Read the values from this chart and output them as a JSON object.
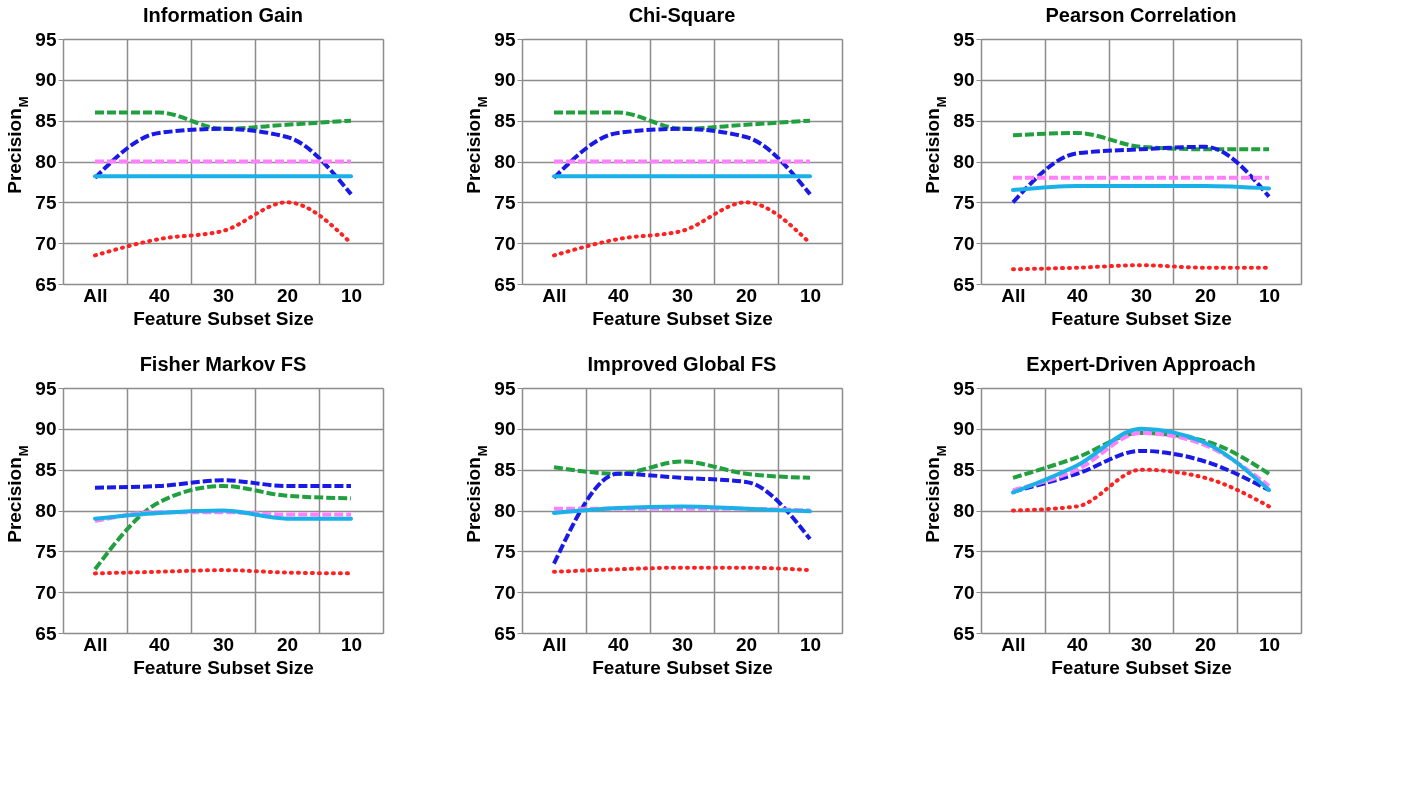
{
  "chart_data": [
    {
      "type": "line",
      "title": "Information Gain",
      "xlabel": "Feature Subset Size",
      "ylabel": "Precision$_{M}$",
      "categories": [
        "All",
        "40",
        "30",
        "20",
        "10"
      ],
      "ylim": [
        65,
        95
      ],
      "yticks": [
        65,
        70,
        75,
        80,
        85,
        90,
        95
      ],
      "grid": true,
      "series": [
        {
          "color": "#22a040",
          "line_style": "dashed",
          "values": [
            86,
            86,
            84,
            84.5,
            85
          ]
        },
        {
          "color": "#1a1ae6",
          "line_style": "dashed",
          "values": [
            78,
            83.5,
            84,
            83,
            76
          ]
        },
        {
          "color": "#ff80ff",
          "line_style": "dashed",
          "values": [
            80,
            80,
            80,
            80,
            80
          ]
        },
        {
          "color": "#1ab0e8",
          "line_style": "solid",
          "values": [
            78.2,
            78.2,
            78.2,
            78.2,
            78.2
          ]
        },
        {
          "color": "#ff2020",
          "line_style": "dotted",
          "values": [
            68.5,
            70.5,
            71.5,
            75,
            70
          ]
        }
      ]
    },
    {
      "type": "line",
      "title": "Chi-Square",
      "xlabel": "Feature Subset Size",
      "ylabel": "Precision$_{M}$",
      "categories": [
        "All",
        "40",
        "30",
        "20",
        "10"
      ],
      "ylim": [
        65,
        95
      ],
      "yticks": [
        65,
        70,
        75,
        80,
        85,
        90,
        95
      ],
      "grid": true,
      "series": [
        {
          "color": "#22a040",
          "line_style": "dashed",
          "values": [
            86,
            86,
            84,
            84.5,
            85
          ]
        },
        {
          "color": "#1a1ae6",
          "line_style": "dashed",
          "values": [
            78,
            83.5,
            84,
            83,
            76
          ]
        },
        {
          "color": "#ff80ff",
          "line_style": "dashed",
          "values": [
            80,
            80,
            80,
            80,
            80
          ]
        },
        {
          "color": "#1ab0e8",
          "line_style": "solid",
          "values": [
            78.2,
            78.2,
            78.2,
            78.2,
            78.2
          ]
        },
        {
          "color": "#ff2020",
          "line_style": "dotted",
          "values": [
            68.5,
            70.5,
            71.5,
            75,
            70
          ]
        }
      ]
    },
    {
      "type": "line",
      "title": "Pearson Correlation",
      "xlabel": "Feature Subset Size",
      "ylabel": "Precision$_{M}$",
      "categories": [
        "All",
        "40",
        "30",
        "20",
        "10"
      ],
      "ylim": [
        65,
        95
      ],
      "yticks": [
        65,
        70,
        75,
        80,
        85,
        90,
        95
      ],
      "grid": true,
      "series": [
        {
          "color": "#22a040",
          "line_style": "dashed",
          "values": [
            83.2,
            83.5,
            81.8,
            81.5,
            81.5
          ]
        },
        {
          "color": "#1a1ae6",
          "line_style": "dashed",
          "values": [
            75,
            81,
            81.5,
            81.8,
            75.7
          ]
        },
        {
          "color": "#ff80ff",
          "line_style": "dashed",
          "values": [
            78,
            78,
            78,
            78,
            78
          ]
        },
        {
          "color": "#1ab0e8",
          "line_style": "solid",
          "values": [
            76.5,
            77,
            77,
            77,
            76.7
          ]
        },
        {
          "color": "#ff2020",
          "line_style": "dotted",
          "values": [
            66.8,
            67,
            67.3,
            67,
            67
          ]
        }
      ]
    },
    {
      "type": "line",
      "title": "Fisher Markov FS",
      "xlabel": "Feature Subset Size",
      "ylabel": "Precision$_{M}$",
      "categories": [
        "All",
        "40",
        "30",
        "20",
        "10"
      ],
      "ylim": [
        65,
        95
      ],
      "yticks": [
        65,
        70,
        75,
        80,
        85,
        90,
        95
      ],
      "grid": true,
      "series": [
        {
          "color": "#22a040",
          "line_style": "dashed",
          "values": [
            72.8,
            81,
            83,
            81.8,
            81.5
          ]
        },
        {
          "color": "#1a1ae6",
          "line_style": "dashed",
          "values": [
            82.8,
            83,
            83.7,
            83,
            83
          ]
        },
        {
          "color": "#ff80ff",
          "line_style": "dashed",
          "values": [
            78.7,
            79.8,
            79.8,
            79.5,
            79.5
          ]
        },
        {
          "color": "#1ab0e8",
          "line_style": "solid",
          "values": [
            79,
            79.7,
            80,
            79,
            79
          ]
        },
        {
          "color": "#ff2020",
          "line_style": "dotted",
          "values": [
            72.3,
            72.5,
            72.7,
            72.4,
            72.3
          ]
        }
      ]
    },
    {
      "type": "line",
      "title": "Improved Global FS",
      "xlabel": "Feature Subset Size",
      "ylabel": "Precision$_{M}$",
      "categories": [
        "All",
        "40",
        "30",
        "20",
        "10"
      ],
      "ylim": [
        65,
        95
      ],
      "yticks": [
        65,
        70,
        75,
        80,
        85,
        90,
        95
      ],
      "grid": true,
      "series": [
        {
          "color": "#22a040",
          "line_style": "dashed",
          "values": [
            85.3,
            84.5,
            86,
            84.5,
            84
          ]
        },
        {
          "color": "#1a1ae6",
          "line_style": "dashed",
          "values": [
            73.5,
            84.5,
            84,
            83.5,
            76.5
          ]
        },
        {
          "color": "#ff80ff",
          "line_style": "dashed",
          "values": [
            80.2,
            80.2,
            80.2,
            80.2,
            80
          ]
        },
        {
          "color": "#1ab0e8",
          "line_style": "solid",
          "values": [
            79.7,
            80.3,
            80.5,
            80.2,
            79.9
          ]
        },
        {
          "color": "#ff2020",
          "line_style": "dotted",
          "values": [
            72.5,
            72.8,
            73,
            73,
            72.7
          ]
        }
      ]
    },
    {
      "type": "line",
      "title": "Expert-Driven Approach",
      "xlabel": "Feature Subset Size",
      "ylabel": "Precision$_{M}$",
      "categories": [
        "All",
        "40",
        "30",
        "20",
        "10"
      ],
      "ylim": [
        65,
        95
      ],
      "yticks": [
        65,
        70,
        75,
        80,
        85,
        90,
        95
      ],
      "grid": true,
      "series": [
        {
          "color": "#22a040",
          "line_style": "dashed",
          "values": [
            84,
            86.5,
            89.5,
            88.5,
            84.5
          ]
        },
        {
          "color": "#1a1ae6",
          "line_style": "dashed",
          "values": [
            82.3,
            84.5,
            87.3,
            86,
            82.5
          ]
        },
        {
          "color": "#ff80ff",
          "line_style": "dashed",
          "values": [
            82.5,
            85,
            89.5,
            88,
            83
          ]
        },
        {
          "color": "#1ab0e8",
          "line_style": "solid",
          "values": [
            82.2,
            85.5,
            90,
            88.3,
            82.5
          ]
        },
        {
          "color": "#ff2020",
          "line_style": "dotted",
          "values": [
            80,
            80.5,
            85,
            84,
            80.5
          ]
        }
      ]
    }
  ]
}
